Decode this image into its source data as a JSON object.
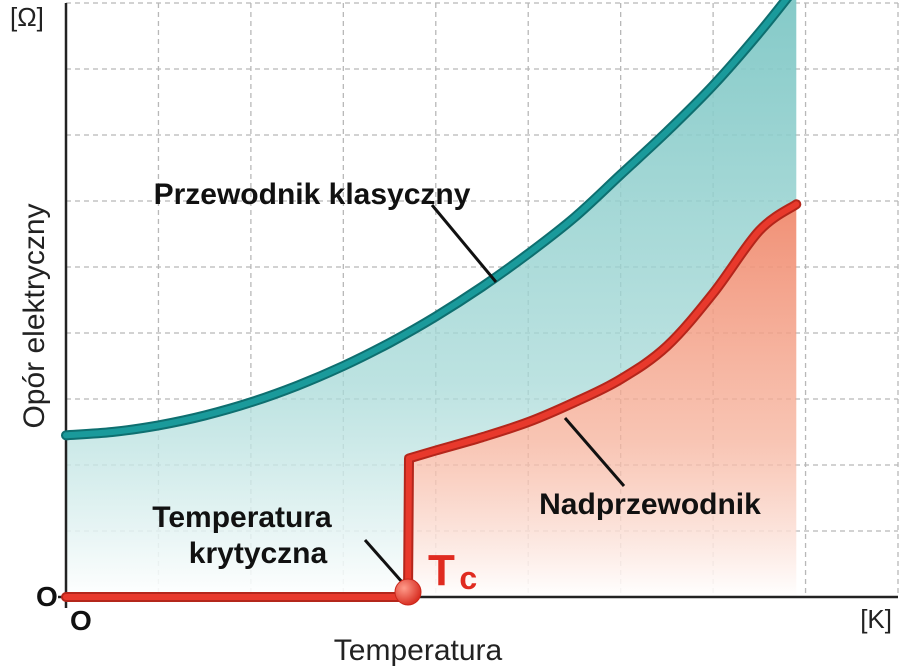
{
  "chart_data": {
    "type": "line",
    "title": "",
    "xlabel": "Temperatura",
    "ylabel": "Opór elektryczny",
    "x_unit": "[K]",
    "y_unit": "[Ω]",
    "x_origin_label": "O",
    "y_origin_label": "O",
    "grid": true,
    "xlim": [
      0,
      9
    ],
    "ylim": [
      0,
      9
    ],
    "critical_temperature": {
      "symbol": "T",
      "subscript": "c",
      "x": 3.7,
      "label": "Temperatura krytyczna",
      "label_lines": [
        "Temperatura",
        "krytyczna"
      ]
    },
    "series": [
      {
        "name": "Przewodnik klasyczny",
        "color": "#1a9a9b",
        "fill": "#8fcfcd",
        "x": [
          0,
          0.5,
          1,
          1.5,
          2,
          2.5,
          3,
          3.5,
          4,
          4.5,
          5,
          5.5,
          6,
          6.5,
          7,
          7.5,
          7.9
        ],
        "y": [
          2.45,
          2.5,
          2.6,
          2.75,
          2.95,
          3.2,
          3.5,
          3.85,
          4.25,
          4.7,
          5.2,
          5.75,
          6.4,
          7.05,
          7.75,
          8.55,
          9.25
        ]
      },
      {
        "name": "Nadprzewodnik",
        "color": "#e8392c",
        "fill": "#f4a48c",
        "x": [
          0,
          3.7,
          3.7,
          3.71,
          4,
          4.5,
          5,
          5.5,
          6,
          6.5,
          7,
          7.5,
          7.9
        ],
        "y": [
          0,
          0,
          0,
          2.1,
          2.22,
          2.42,
          2.65,
          2.95,
          3.3,
          3.8,
          4.6,
          5.55,
          5.95
        ]
      }
    ]
  }
}
